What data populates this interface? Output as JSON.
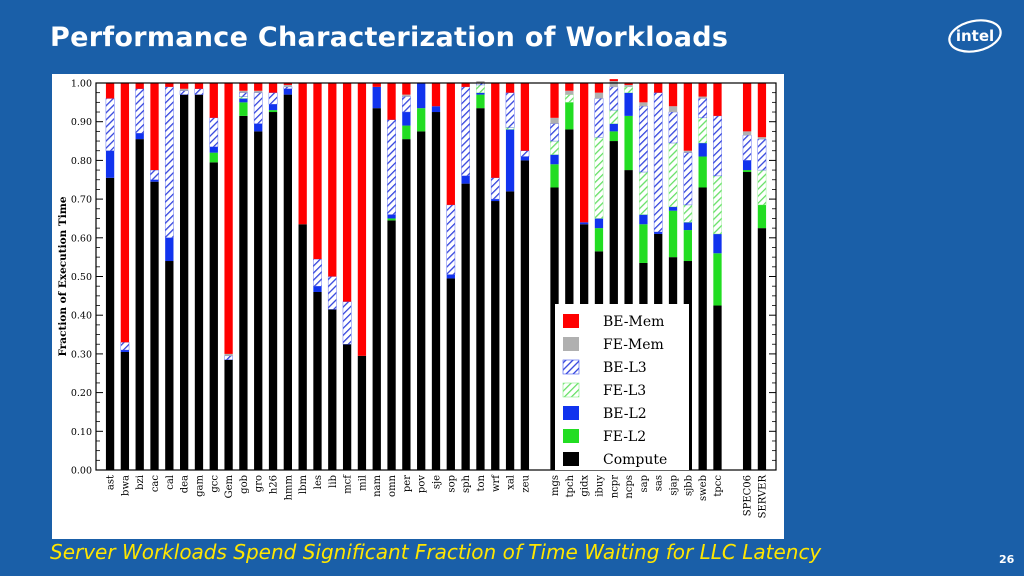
{
  "slide": {
    "title": "Performance Characterization of Workloads",
    "footer": "Server Workloads Spend Significant Fraction of Time Waiting for LLC Latency",
    "page_number": "26",
    "logo_text": "intel",
    "background_color": "#1a5fa8",
    "footer_color": "#ffe600"
  },
  "chart_data": {
    "type": "bar",
    "stacked": true,
    "ylabel": "Fraction of Execution Time",
    "ylim": [
      0,
      1
    ],
    "yticks": [
      "0.00",
      "0.10",
      "0.20",
      "0.30",
      "0.40",
      "0.50",
      "0.60",
      "0.70",
      "0.80",
      "0.90",
      "1.00"
    ],
    "legend_position": "inside-right",
    "categories": [
      "ast",
      "bwa",
      "bzi",
      "cac",
      "cal",
      "dea",
      "gam",
      "gcc",
      "Gem",
      "gob",
      "gro",
      "h26",
      "hmm",
      "lbm",
      "les",
      "lib",
      "mcf",
      "mil",
      "nam",
      "omn",
      "per",
      "pov",
      "sje",
      "sop",
      "sph",
      "ton",
      "wrf",
      "xal",
      "zeu",
      "",
      "mgs",
      "tpch",
      "gidx",
      "ibuy",
      "ncpr",
      "ncps",
      "sap",
      "sas",
      "sjap",
      "sjbb",
      "sweb",
      "tpcc",
      "",
      "SPEC06",
      "SERVER"
    ],
    "series": [
      {
        "name": "Compute",
        "color": "#000000",
        "pattern": "solid",
        "values": [
          0.755,
          0.305,
          0.855,
          0.745,
          0.54,
          0.97,
          0.97,
          0.795,
          0.285,
          0.915,
          0.875,
          0.925,
          0.97,
          0.635,
          0.46,
          0.415,
          0.325,
          0.295,
          0.935,
          0.645,
          0.855,
          0.875,
          0.925,
          0.495,
          0.74,
          0.935,
          0.695,
          0.72,
          0.8,
          null,
          0.73,
          0.88,
          0.635,
          0.565,
          0.85,
          0.775,
          0.535,
          0.61,
          0.55,
          0.54,
          0.73,
          0.425,
          null,
          0.77,
          0.625
        ]
      },
      {
        "name": "FE-L2",
        "color": "#22dd22",
        "pattern": "solid",
        "values": [
          0,
          0,
          0,
          0,
          0,
          0,
          0,
          0.025,
          0,
          0.035,
          0,
          0.005,
          0,
          0,
          0,
          0,
          0,
          0,
          0,
          0.005,
          0.035,
          0.06,
          0,
          0,
          0,
          0.035,
          0,
          0,
          0,
          null,
          0.06,
          0.07,
          0,
          0.06,
          0.025,
          0.14,
          0.1,
          0,
          0.12,
          0.08,
          0.08,
          0.135,
          null,
          0.005,
          0.06
        ]
      },
      {
        "name": "BE-L2",
        "color": "#1133ee",
        "pattern": "solid",
        "values": [
          0.07,
          0.005,
          0.015,
          0.005,
          0.06,
          0,
          0,
          0.015,
          0,
          0.01,
          0.02,
          0.015,
          0.015,
          0,
          0.015,
          0,
          0,
          0,
          0.055,
          0.01,
          0.035,
          0.065,
          0.015,
          0.01,
          0.02,
          0.005,
          0.005,
          0.16,
          0.01,
          null,
          0.025,
          0,
          0.005,
          0.025,
          0.02,
          0.06,
          0.025,
          0.005,
          0.01,
          0.02,
          0.035,
          0.05,
          null,
          0.025,
          0
        ]
      },
      {
        "name": "FE-L3",
        "color": "#88ee88",
        "pattern": "hatch-green",
        "values": [
          0,
          0,
          0,
          0,
          0,
          0,
          0,
          0,
          0,
          0.005,
          0,
          0,
          0,
          0,
          0,
          0,
          0,
          0,
          0,
          0,
          0,
          0,
          0,
          0,
          0,
          0.02,
          0,
          0.005,
          0,
          null,
          0.035,
          0.02,
          0,
          0.21,
          0.035,
          0.015,
          0.11,
          0,
          0.165,
          0.045,
          0.065,
          0.15,
          null,
          0,
          0.09
        ]
      },
      {
        "name": "BE-L3",
        "color": "#4455ee",
        "pattern": "hatch-blue",
        "values": [
          0.135,
          0.02,
          0.115,
          0.025,
          0.39,
          0.01,
          0.015,
          0.075,
          0.01,
          0.01,
          0.08,
          0.03,
          0.005,
          0,
          0.07,
          0.085,
          0.11,
          0,
          0,
          0.245,
          0.04,
          0,
          0,
          0.18,
          0.23,
          0.005,
          0.055,
          0.09,
          0.015,
          null,
          0.045,
          0,
          0,
          0.1,
          0.06,
          0,
          0.17,
          0.36,
          0.08,
          0.135,
          0.05,
          0.155,
          null,
          0.065,
          0.08
        ]
      },
      {
        "name": "FE-Mem",
        "color": "#b0b0b0",
        "pattern": "solid",
        "values": [
          0,
          0,
          0,
          0,
          0,
          0.005,
          0,
          0,
          0.005,
          0.005,
          0.005,
          0,
          0.005,
          0,
          0,
          0,
          0,
          0,
          0,
          0,
          0.005,
          0,
          0,
          0,
          0,
          0.005,
          0,
          0,
          0,
          null,
          0.015,
          0.01,
          0,
          0.015,
          0.015,
          0.005,
          0.01,
          0,
          0.015,
          0.005,
          0.005,
          0,
          null,
          0.01,
          0.005
        ]
      },
      {
        "name": "BE-Mem",
        "color": "#ff0000",
        "pattern": "solid",
        "values": [
          0.04,
          0.67,
          0.015,
          0.225,
          0.01,
          0.015,
          0.015,
          0.09,
          0.7,
          0.02,
          0.02,
          0.025,
          0.005,
          0.365,
          0.455,
          0.5,
          0.565,
          0.705,
          0.01,
          0.095,
          0.03,
          0,
          0.06,
          0.315,
          0.01,
          0,
          0.245,
          0.025,
          0.175,
          null,
          0.09,
          0.02,
          0.36,
          0.025,
          0.005,
          0.005,
          0.05,
          0.025,
          0.06,
          0.175,
          0.035,
          0.085,
          null,
          0.125,
          0.14
        ]
      }
    ]
  }
}
